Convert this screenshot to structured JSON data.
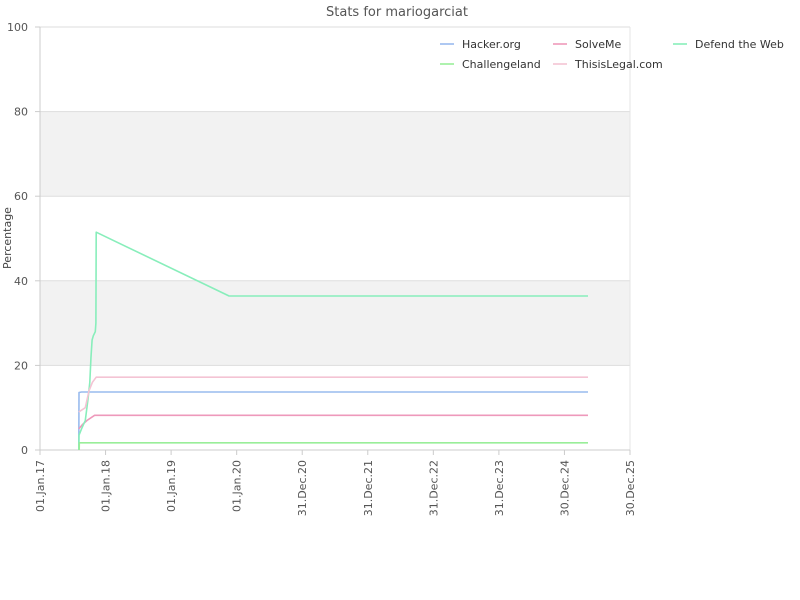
{
  "chart_data": {
    "type": "line",
    "title": "Stats for mariogarciat",
    "xlabel": "",
    "ylabel": "Percentage",
    "ylim": [
      0,
      100
    ],
    "yticks": [
      0,
      20,
      40,
      60,
      80,
      100
    ],
    "xlim": [
      "2017-01-01",
      "2025-12-30"
    ],
    "xticks": [
      {
        "date": "2017-01-01",
        "label": "01.Jan.17"
      },
      {
        "date": "2018-01-01",
        "label": "01.Jan.18"
      },
      {
        "date": "2019-01-01",
        "label": "01.Jan.19"
      },
      {
        "date": "2020-01-01",
        "label": "01.Jan.20"
      },
      {
        "date": "2020-12-31",
        "label": "31.Dec.20"
      },
      {
        "date": "2021-12-31",
        "label": "31.Dec.21"
      },
      {
        "date": "2022-12-31",
        "label": "31.Dec.22"
      },
      {
        "date": "2023-12-31",
        "label": "31.Dec.23"
      },
      {
        "date": "2024-12-30",
        "label": "30.Dec.24"
      },
      {
        "date": "2025-12-30",
        "label": "30.Dec.25"
      }
    ],
    "grid": {
      "horizontal_bands": true,
      "alternating_band_color": "#f2f2f2"
    },
    "legend_position": "top-right",
    "series": [
      {
        "name": "Hacker.org",
        "color": "#99bbee",
        "points": [
          [
            "2017-08-05",
            0
          ],
          [
            "2017-08-06",
            13.6
          ],
          [
            "2017-08-20",
            13.7
          ],
          [
            "2025-05-10",
            13.7
          ]
        ]
      },
      {
        "name": "SolveMe",
        "color": "#ee99bb",
        "points": [
          [
            "2017-08-05",
            5
          ],
          [
            "2017-08-25",
            6
          ],
          [
            "2017-09-20",
            7
          ],
          [
            "2017-11-01",
            8.2
          ],
          [
            "2025-05-10",
            8.2
          ]
        ]
      },
      {
        "name": "Defend the Web",
        "color": "#88eebb",
        "points": [
          [
            "2017-08-05",
            0
          ],
          [
            "2017-08-06",
            3.5
          ],
          [
            "2017-08-20",
            5
          ],
          [
            "2017-09-10",
            7
          ],
          [
            "2017-09-25",
            12
          ],
          [
            "2017-10-05",
            16
          ],
          [
            "2017-10-12",
            22
          ],
          [
            "2017-10-18",
            26
          ],
          [
            "2017-10-25",
            27
          ],
          [
            "2017-11-05",
            28
          ],
          [
            "2017-11-08",
            30
          ],
          [
            "2017-11-10",
            51.5
          ],
          [
            "2019-11-20",
            36.4
          ],
          [
            "2025-05-10",
            36.4
          ]
        ]
      },
      {
        "name": "Challengeland",
        "color": "#99ee99",
        "points": [
          [
            "2017-08-07",
            0
          ],
          [
            "2017-08-08",
            1.7
          ],
          [
            "2025-05-10",
            1.7
          ]
        ]
      },
      {
        "name": "ThisisLegal.com",
        "color": "#f4c4d4",
        "points": [
          [
            "2017-08-05",
            9
          ],
          [
            "2017-09-10",
            10
          ],
          [
            "2017-10-01",
            14
          ],
          [
            "2017-10-20",
            16
          ],
          [
            "2017-11-10",
            17.2
          ],
          [
            "2025-05-10",
            17.2
          ]
        ]
      }
    ]
  }
}
